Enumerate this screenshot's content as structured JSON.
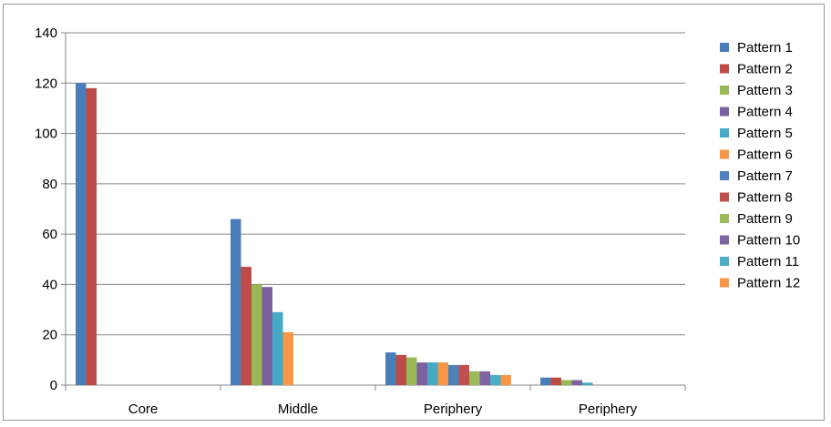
{
  "chart_data": {
    "type": "bar",
    "title": "",
    "xlabel": "",
    "ylabel": "",
    "ylim": [
      0,
      140
    ],
    "yticks": [
      0,
      20,
      40,
      60,
      80,
      100,
      120,
      140
    ],
    "grid": true,
    "legend_position": "right",
    "categories": [
      "Core",
      "Middle",
      "Periphery",
      "Periphery"
    ],
    "series": [
      {
        "name": "Pattern 1",
        "color": "#4A7EBB",
        "values": [
          120,
          66,
          13,
          3
        ]
      },
      {
        "name": "Pattern 2",
        "color": "#BE4B48",
        "values": [
          118,
          47,
          12,
          3
        ]
      },
      {
        "name": "Pattern 3",
        "color": "#98B954",
        "values": [
          0,
          40,
          11,
          2
        ]
      },
      {
        "name": "Pattern 4",
        "color": "#7D60A0",
        "values": [
          0,
          39,
          9,
          2
        ]
      },
      {
        "name": "Pattern 5",
        "color": "#46AAC5",
        "values": [
          0,
          29,
          9,
          1
        ]
      },
      {
        "name": "Pattern 6",
        "color": "#F79646",
        "values": [
          0,
          21,
          9,
          0
        ]
      },
      {
        "name": "Pattern 7",
        "color": "#4F81BD",
        "values": [
          0,
          0,
          8,
          0
        ]
      },
      {
        "name": "Pattern 8",
        "color": "#C0504D",
        "values": [
          0,
          0,
          8,
          0
        ]
      },
      {
        "name": "Pattern 9",
        "color": "#9BBB59",
        "values": [
          0,
          0,
          5.5,
          0
        ]
      },
      {
        "name": "Pattern 10",
        "color": "#8064A2",
        "values": [
          0,
          0,
          5.5,
          0
        ]
      },
      {
        "name": "Pattern 11",
        "color": "#4BACC6",
        "values": [
          0,
          0,
          4,
          0
        ]
      },
      {
        "name": "Pattern 12",
        "color": "#F79646",
        "values": [
          0,
          0,
          4,
          0
        ]
      }
    ]
  }
}
